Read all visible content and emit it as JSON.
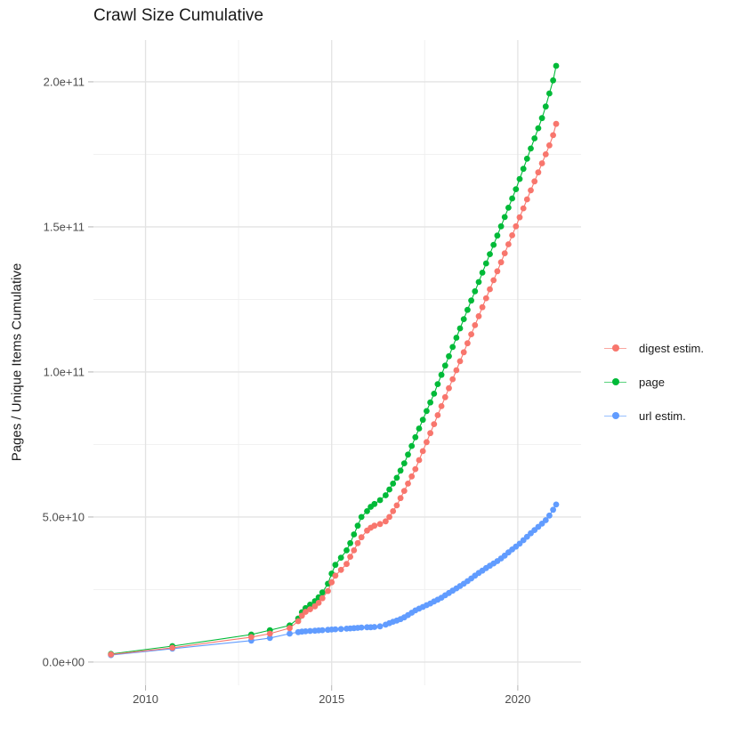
{
  "chart_data": {
    "type": "scatter",
    "style": "connected points (line + dots), ggplot2 look",
    "title": "Crawl Size Cumulative",
    "xlabel": "",
    "ylabel": "Pages / Unique Items Cumulative",
    "value_unit": "items, stored as billions (1e9)",
    "grid": "on",
    "legend_position": "right",
    "colors": {
      "background": "#ffffff",
      "grid_major": "#e3e3e3",
      "grid_minor": "#efefef",
      "tick_mark": "#b3b3b3",
      "tick_label": "#4d4d4d",
      "text": "#1a1a1a"
    },
    "x_axis": {
      "range": [
        2008.6,
        2021.7
      ],
      "tick_values": [
        2010,
        2015,
        2020
      ],
      "tick_labels": [
        "2010",
        "2015",
        "2020"
      ],
      "minor_values": [
        2012.5,
        2017.5
      ]
    },
    "y_axis": {
      "range_e9": [
        -8,
        214.4
      ],
      "tick_values_e9": [
        0,
        50,
        100,
        150,
        200
      ],
      "tick_labels": [
        "0.0e+00",
        "5.0e+10",
        "1.0e+11",
        "1.5e+11",
        "2.0e+11"
      ],
      "minor_values_e9": [
        25,
        75,
        125,
        175
      ]
    },
    "x_years": [
      2009.07,
      2010.72,
      2012.84,
      2013.34,
      2013.87,
      2014.1,
      2014.2,
      2014.3,
      2014.42,
      2014.55,
      2014.65,
      2014.75,
      2014.9,
      2015.0,
      2015.1,
      2015.25,
      2015.4,
      2015.5,
      2015.6,
      2015.7,
      2015.8,
      2015.95,
      2016.05,
      2016.15,
      2016.3,
      2016.45,
      2016.55,
      2016.65,
      2016.75,
      2016.85,
      2016.95,
      2017.05,
      2017.15,
      2017.25,
      2017.35,
      2017.45,
      2017.55,
      2017.65,
      2017.75,
      2017.85,
      2017.95,
      2018.05,
      2018.15,
      2018.25,
      2018.35,
      2018.45,
      2018.55,
      2018.65,
      2018.75,
      2018.85,
      2018.95,
      2019.05,
      2019.15,
      2019.25,
      2019.35,
      2019.45,
      2019.55,
      2019.65,
      2019.75,
      2019.85,
      2019.95,
      2020.05,
      2020.15,
      2020.25,
      2020.35,
      2020.45,
      2020.55,
      2020.65,
      2020.75,
      2020.85,
      2020.95,
      2021.03
    ],
    "series": [
      {
        "name": "digest estim.",
        "color": "#F8766D",
        "values_e9": [
          2.6,
          4.9,
          8.6,
          9.8,
          11.7,
          14.1,
          16.0,
          17.3,
          18.2,
          19.2,
          20.4,
          22.0,
          24.5,
          27.5,
          29.8,
          31.8,
          33.8,
          36.3,
          38.5,
          41.0,
          43.0,
          45.3,
          46.3,
          47.0,
          47.6,
          48.5,
          50.0,
          52.0,
          54.0,
          56.5,
          59.0,
          61.5,
          64.0,
          66.5,
          69.6,
          72.7,
          75.8,
          78.9,
          82.0,
          85.1,
          88.2,
          91.3,
          94.4,
          97.5,
          100.6,
          103.7,
          106.8,
          109.9,
          113.0,
          116.1,
          119.2,
          122.3,
          125.4,
          128.5,
          131.6,
          134.7,
          137.8,
          140.9,
          144.0,
          147.1,
          150.2,
          153.3,
          156.4,
          159.5,
          162.6,
          165.7,
          168.8,
          171.9,
          175.0,
          178.1,
          181.6,
          185.5
        ]
      },
      {
        "name": "page",
        "color": "#00BA38",
        "values_e9": [
          2.8,
          5.5,
          9.5,
          11.0,
          12.6,
          15.0,
          17.2,
          18.6,
          19.8,
          21.0,
          22.3,
          24.0,
          27.0,
          30.5,
          33.5,
          36.0,
          38.5,
          41.0,
          44.0,
          47.0,
          50.0,
          52.0,
          53.5,
          54.5,
          55.8,
          57.5,
          59.5,
          61.5,
          63.5,
          66.0,
          68.5,
          71.5,
          74.5,
          77.5,
          80.5,
          83.5,
          86.5,
          89.5,
          92.5,
          95.8,
          99.0,
          102.2,
          105.4,
          108.6,
          111.8,
          115.0,
          118.2,
          121.4,
          124.6,
          127.8,
          131.0,
          134.2,
          137.4,
          140.6,
          143.8,
          147.0,
          150.2,
          153.4,
          156.6,
          159.8,
          163.0,
          166.5,
          170.0,
          173.5,
          177.0,
          180.5,
          184.0,
          187.5,
          191.5,
          196.0,
          200.5,
          205.5
        ]
      },
      {
        "name": "url estim.",
        "color": "#619CFF",
        "values_e9": [
          2.4,
          4.6,
          7.4,
          8.3,
          9.8,
          10.3,
          10.5,
          10.6,
          10.7,
          10.8,
          10.9,
          11.0,
          11.1,
          11.2,
          11.3,
          11.4,
          11.5,
          11.6,
          11.7,
          11.8,
          11.9,
          12.0,
          12.0,
          12.1,
          12.3,
          12.9,
          13.4,
          13.9,
          14.3,
          14.8,
          15.4,
          16.2,
          17.0,
          17.8,
          18.4,
          19.0,
          19.6,
          20.2,
          20.9,
          21.5,
          22.2,
          23.0,
          23.8,
          24.6,
          25.4,
          26.2,
          27.0,
          27.9,
          28.8,
          29.8,
          30.7,
          31.5,
          32.4,
          33.2,
          34.0,
          34.8,
          35.7,
          36.7,
          37.8,
          38.8,
          39.8,
          40.8,
          42.0,
          43.2,
          44.4,
          45.5,
          46.6,
          47.7,
          48.9,
          50.5,
          52.5,
          54.3
        ]
      }
    ]
  }
}
